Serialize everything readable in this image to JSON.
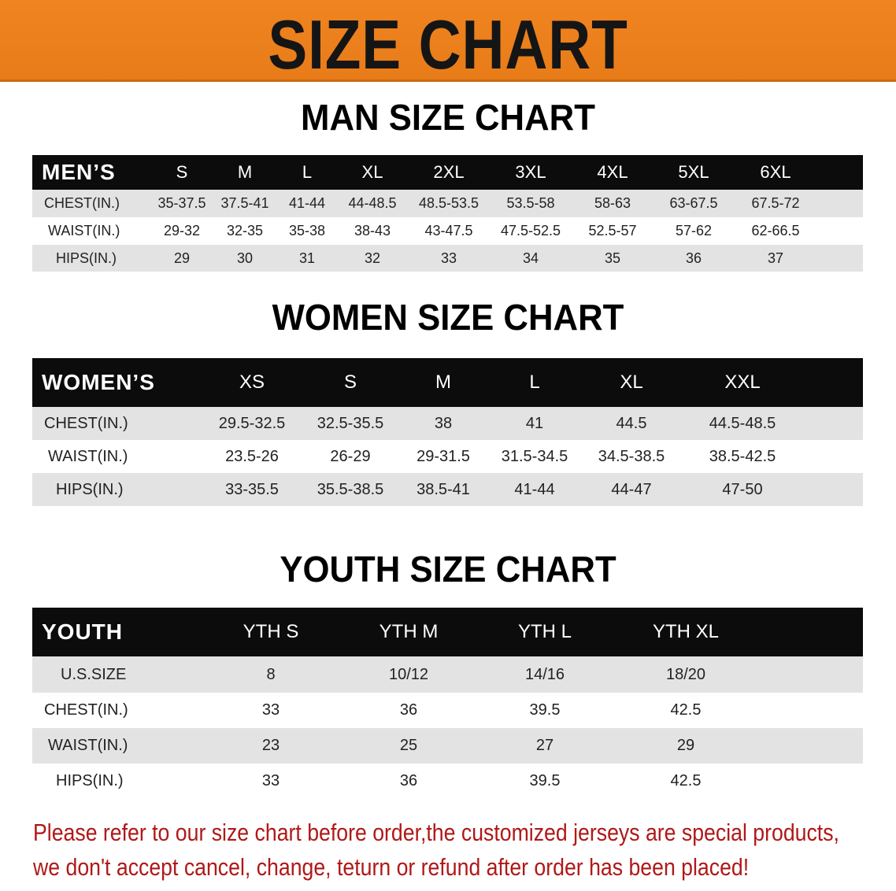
{
  "banner": {
    "title": "SIZE CHART",
    "color": "#ea7f1b"
  },
  "men": {
    "title": "MAN SIZE CHART",
    "header_label": "MEN’S",
    "sizes": [
      "S",
      "M",
      "L",
      "XL",
      "2XL",
      "3XL",
      "4XL",
      "5XL",
      "6XL"
    ],
    "rows": [
      {
        "label": "CHEST(IN.)",
        "values": [
          "35-37.5",
          "37.5-41",
          "41-44",
          "44-48.5",
          "48.5-53.5",
          "53.5-58",
          "58-63",
          "63-67.5",
          "67.5-72"
        ]
      },
      {
        "label": "WAIST(IN.)",
        "values": [
          "29-32",
          "32-35",
          "35-38",
          "38-43",
          "43-47.5",
          "47.5-52.5",
          "52.5-57",
          "57-62",
          "62-66.5"
        ]
      },
      {
        "label": "HIPS(IN.)",
        "values": [
          "29",
          "30",
          "31",
          "32",
          "33",
          "34",
          "35",
          "36",
          "37"
        ]
      }
    ]
  },
  "women": {
    "title": "WOMEN SIZE CHART",
    "header_label": "WOMEN’S",
    "sizes": [
      "XS",
      "S",
      "M",
      "L",
      "XL",
      "XXL"
    ],
    "rows": [
      {
        "label": "CHEST(IN.)",
        "values": [
          "29.5-32.5",
          "32.5-35.5",
          "38",
          "41",
          "44.5",
          "44.5-48.5"
        ]
      },
      {
        "label": "WAIST(IN.)",
        "values": [
          "23.5-26",
          "26-29",
          "29-31.5",
          "31.5-34.5",
          "34.5-38.5",
          "38.5-42.5"
        ]
      },
      {
        "label": "HIPS(IN.)",
        "values": [
          "33-35.5",
          "35.5-38.5",
          "38.5-41",
          "41-44",
          "44-47",
          "47-50"
        ]
      }
    ]
  },
  "youth": {
    "title": "YOUTH SIZE CHART",
    "header_label": "YOUTH",
    "sizes": [
      "YTH S",
      "YTH M",
      "YTH L",
      "YTH XL"
    ],
    "rows": [
      {
        "label": "U.S.SIZE",
        "values": [
          "8",
          "10/12",
          "14/16",
          "18/20"
        ]
      },
      {
        "label": "CHEST(IN.)",
        "values": [
          "33",
          "36",
          "39.5",
          "42.5"
        ]
      },
      {
        "label": "WAIST(IN.)",
        "values": [
          "23",
          "25",
          "27",
          "29"
        ]
      },
      {
        "label": "HIPS(IN.)",
        "values": [
          "33",
          "36",
          "39.5",
          "42.5"
        ]
      }
    ]
  },
  "notice": {
    "line1": "Please refer to our size chart before order,the customized jerseys are special products,",
    "line2": "we don't accept cancel, change, teturn or refund after order has been placed!",
    "color": "#b01818"
  }
}
